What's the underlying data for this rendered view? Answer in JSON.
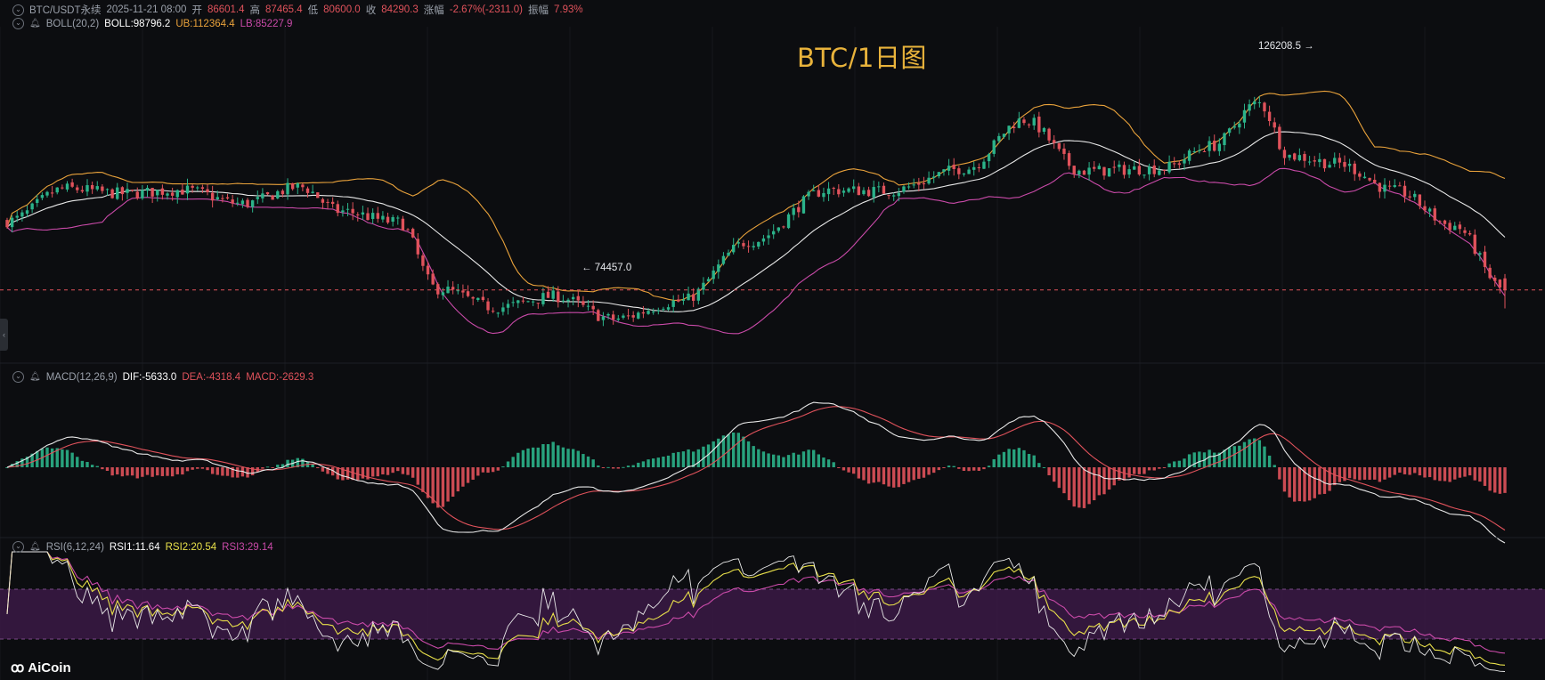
{
  "header": {
    "symbol": "BTC/USDT永续",
    "datetime": "2025-11-21 08:00",
    "open_label": "开",
    "open": "86601.4",
    "high_label": "高",
    "high": "87465.4",
    "low_label": "低",
    "low": "80600.0",
    "close_label": "收",
    "close": "84290.3",
    "change_label": "涨幅",
    "change": "-2.67%(-2311.0)",
    "amplitude_label": "振幅",
    "amplitude": "7.93%"
  },
  "boll": {
    "label": "BOLL(20,2)",
    "boll": "BOLL:98796.2",
    "ub": "UB:112364.4",
    "lb": "LB:85227.9"
  },
  "macd": {
    "label": "MACD(12,26,9)",
    "dif": "DIF:-5633.0",
    "dea": "DEA:-4318.4",
    "macd": "MACD:-2629.3"
  },
  "rsi": {
    "label": "RSI(6,12,24)",
    "rsi1": "RSI1:11.64",
    "rsi2": "RSI2:20.54",
    "rsi3": "RSI3:29.14"
  },
  "title": "BTC/1日图",
  "annotations": {
    "high_mark": "126208.5",
    "low_mark": "74457.0"
  },
  "logo": "AiCoin",
  "colors": {
    "background": "#0c0d10",
    "up": "#2bb38a",
    "down": "#e0525b",
    "boll_mid": "#e8e8e8",
    "boll_ub": "#e9a23b",
    "boll_lb": "#c94aa8",
    "dif": "#e8e8e8",
    "dea": "#e0525b",
    "rsi1": "#e8e8e8",
    "rsi2": "#e8e04a",
    "rsi3": "#c94aa8",
    "rsi_band": "#3b1a45",
    "title": "#e9b33b"
  },
  "chart_data": {
    "type": "candlestick",
    "interval": "1d",
    "bars": 300,
    "ylim": [
      72000,
      135000
    ],
    "close_anchors": [
      [
        0,
        98000
      ],
      [
        15,
        104500
      ],
      [
        30,
        103500
      ],
      [
        45,
        104200
      ],
      [
        60,
        101500
      ],
      [
        75,
        104800
      ],
      [
        85,
        100000
      ],
      [
        100,
        97800
      ],
      [
        110,
        84500
      ],
      [
        125,
        80800
      ],
      [
        140,
        83000
      ],
      [
        155,
        78500
      ],
      [
        172,
        82000
      ],
      [
        190,
        94000
      ],
      [
        210,
        104200
      ],
      [
        225,
        104000
      ],
      [
        245,
        108500
      ],
      [
        260,
        118200
      ],
      [
        275,
        108000
      ],
      [
        295,
        108500
      ],
      [
        308,
        113000
      ],
      [
        320,
        121500
      ],
      [
        328,
        111000
      ],
      [
        340,
        109500
      ],
      [
        355,
        104000
      ],
      [
        370,
        97000
      ],
      [
        383,
        84300
      ]
    ],
    "marks": {
      "high": 126208.5,
      "low": 74457.0
    },
    "indicators": {
      "boll": {
        "period": 20,
        "k": 2,
        "last": [
          98796.2,
          112364.4,
          85227.9
        ]
      },
      "macd": {
        "fast": 12,
        "slow": 26,
        "signal": 9,
        "last": [
          -5633.0,
          -4318.4,
          -2629.3
        ]
      },
      "rsi": {
        "periods": [
          6,
          12,
          24
        ],
        "last": [
          11.64,
          20.54,
          29.14
        ],
        "bands": [
          30,
          70
        ]
      }
    }
  }
}
